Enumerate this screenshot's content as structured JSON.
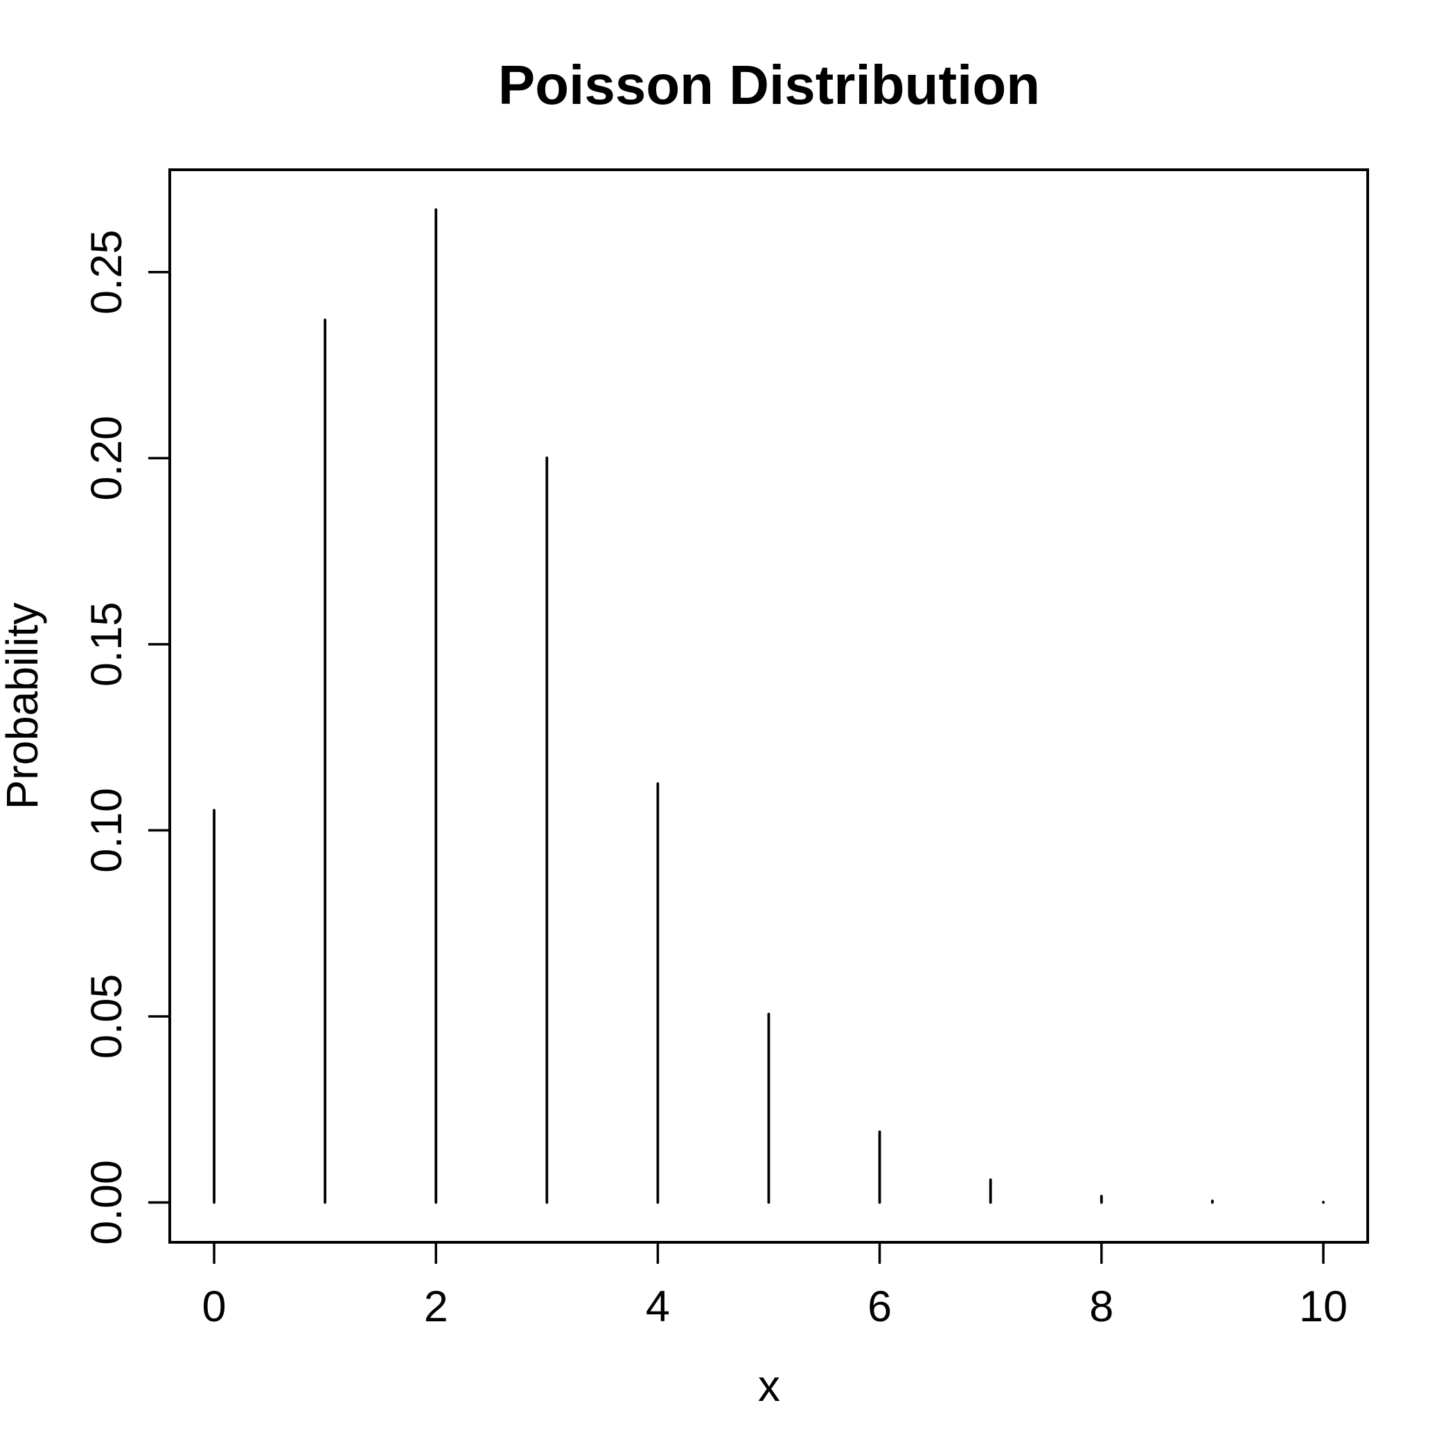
{
  "figure": {
    "background": "#ffffff",
    "foreground": "#000000"
  },
  "chart_data": {
    "type": "bar",
    "style": "vertical-spikes",
    "title": "Poisson Distribution",
    "xlabel": "x",
    "ylabel": "Probability",
    "x": [
      0,
      1,
      2,
      3,
      4,
      5,
      6,
      7,
      8,
      9,
      10
    ],
    "values": [
      0.105399,
      0.237148,
      0.266792,
      0.200094,
      0.112553,
      0.050649,
      0.018993,
      0.006105,
      0.001717,
      0.000429,
      9.7e-05
    ],
    "xlim": [
      -0.4,
      10.4
    ],
    "ylim": [
      -0.0107,
      0.2775
    ],
    "x_ticks": {
      "values": [
        0,
        2,
        4,
        6,
        8,
        10
      ],
      "labels": [
        "0",
        "2",
        "4",
        "6",
        "8",
        "10"
      ]
    },
    "y_ticks": {
      "values": [
        0,
        0.05,
        0.1,
        0.15,
        0.2,
        0.25
      ],
      "labels": [
        "0.00",
        "0.05",
        "0.10",
        "0.15",
        "0.20",
        "0.25"
      ]
    },
    "grid": false,
    "legend": null
  }
}
